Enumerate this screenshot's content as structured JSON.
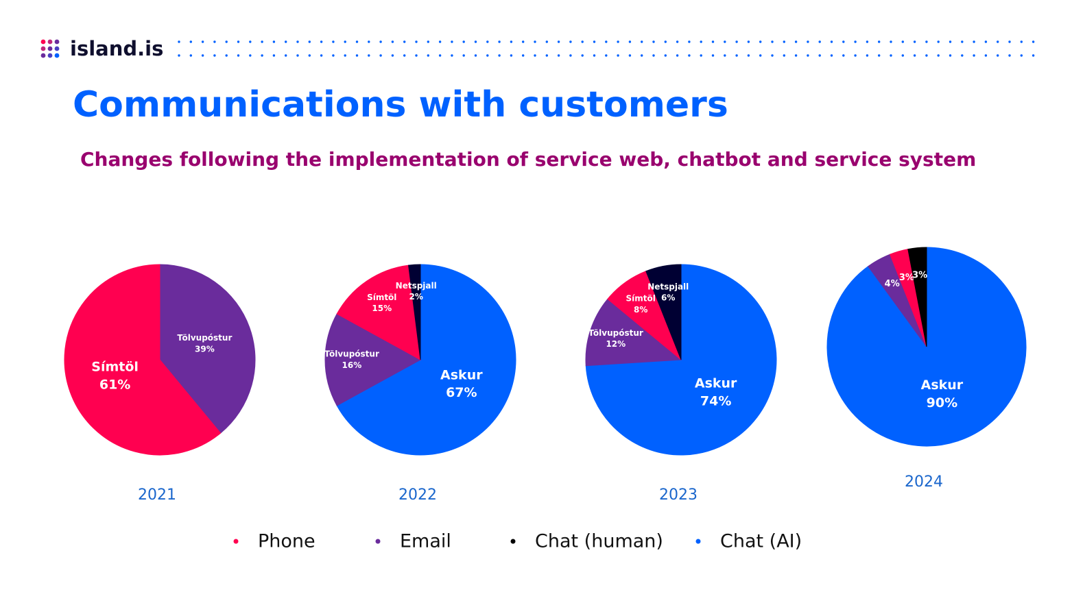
{
  "logo": "island.is",
  "title": "Communications with customers",
  "subtitle": "Changes following the implementation of service web, chatbot and service system",
  "legend": [
    {
      "name": "Phone",
      "color": "#ff0050"
    },
    {
      "name": "Email",
      "color": "#6a2c9c"
    },
    {
      "name": "Chat (human)",
      "color": "#000000"
    },
    {
      "name": "Chat (AI)",
      "color": "#0061ff"
    }
  ],
  "chart_data": [
    {
      "type": "pie",
      "title": "2021",
      "categories": [
        "Tölvupóstur",
        "Símtöl"
      ],
      "values": [
        39,
        61
      ],
      "value_labels": [
        "39%",
        "61%"
      ],
      "colors": [
        "#6a2c9c",
        "#ff0050"
      ]
    },
    {
      "type": "pie",
      "title": "2022",
      "categories": [
        "Askur",
        "Tölvupóstur",
        "Símtöl",
        "Netspjall"
      ],
      "values": [
        67,
        16,
        15,
        2
      ],
      "value_labels": [
        "67%",
        "16%",
        "15%",
        "2%"
      ],
      "colors": [
        "#0061ff",
        "#6a2c9c",
        "#ff0050",
        "#000033"
      ]
    },
    {
      "type": "pie",
      "title": "2023",
      "categories": [
        "Askur",
        "Tölvupóstur",
        "Símtöl",
        "Netspjall"
      ],
      "values": [
        74,
        12,
        8,
        6
      ],
      "value_labels": [
        "74%",
        "12%",
        "8%",
        "6%"
      ],
      "colors": [
        "#0061ff",
        "#6a2c9c",
        "#ff0050",
        "#000033"
      ]
    },
    {
      "type": "pie",
      "title": "2024",
      "categories": [
        "Askur",
        null,
        null,
        null
      ],
      "values": [
        90,
        4,
        3,
        3
      ],
      "value_labels": [
        "90%",
        "4%",
        "3%",
        "3%"
      ],
      "colors": [
        "#0061ff",
        "#6a2c9c",
        "#ff0050",
        "#000000"
      ]
    }
  ]
}
